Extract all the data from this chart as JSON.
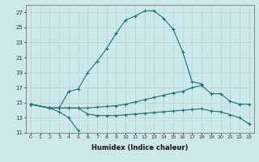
{
  "xlabel": "Humidex (Indice chaleur)",
  "bg_color": "#cce8ea",
  "grid_color": "#b0d4d6",
  "line_color": "#1e7070",
  "xlim": [
    -0.5,
    23.5
  ],
  "ylim": [
    11,
    28
  ],
  "x_ticks": [
    0,
    1,
    2,
    3,
    4,
    5,
    6,
    7,
    8,
    9,
    10,
    11,
    12,
    13,
    14,
    15,
    16,
    17,
    18,
    19,
    20,
    21,
    22,
    23
  ],
  "y_ticks": [
    11,
    13,
    15,
    17,
    19,
    21,
    23,
    25,
    27
  ],
  "curve_main": {
    "x": [
      0,
      2,
      3,
      4,
      5,
      6,
      7,
      8,
      9,
      10,
      11,
      12,
      13,
      14,
      15,
      16,
      17,
      18
    ],
    "y": [
      14.8,
      14.3,
      14.3,
      16.5,
      16.8,
      19.0,
      20.5,
      22.2,
      24.2,
      26.0,
      26.5,
      27.2,
      27.2,
      26.2,
      24.8,
      21.8,
      17.8,
      17.5
    ]
  },
  "curve_dip": {
    "x": [
      0,
      2,
      3,
      4,
      5
    ],
    "y": [
      14.8,
      14.3,
      13.8,
      13.0,
      11.3
    ]
  },
  "curve_upper": {
    "x": [
      0,
      2,
      3,
      4,
      5,
      6,
      7,
      8,
      9,
      10,
      11,
      12,
      13,
      14,
      15,
      16,
      17,
      18,
      19,
      20,
      21,
      22,
      23
    ],
    "y": [
      14.8,
      14.3,
      14.3,
      14.3,
      14.3,
      14.3,
      14.4,
      14.5,
      14.6,
      14.8,
      15.1,
      15.4,
      15.7,
      16.0,
      16.3,
      16.5,
      17.0,
      17.3,
      16.2,
      16.2,
      15.2,
      14.8,
      14.8
    ]
  },
  "curve_lower": {
    "x": [
      0,
      2,
      3,
      4,
      5,
      6,
      7,
      8,
      9,
      10,
      11,
      12,
      13,
      14,
      15,
      16,
      17,
      18,
      19,
      20,
      21,
      22,
      23
    ],
    "y": [
      14.8,
      14.3,
      14.3,
      14.3,
      14.3,
      13.5,
      13.3,
      13.3,
      13.3,
      13.4,
      13.5,
      13.6,
      13.7,
      13.8,
      13.9,
      14.0,
      14.1,
      14.2,
      13.9,
      13.8,
      13.4,
      13.0,
      12.2
    ]
  }
}
